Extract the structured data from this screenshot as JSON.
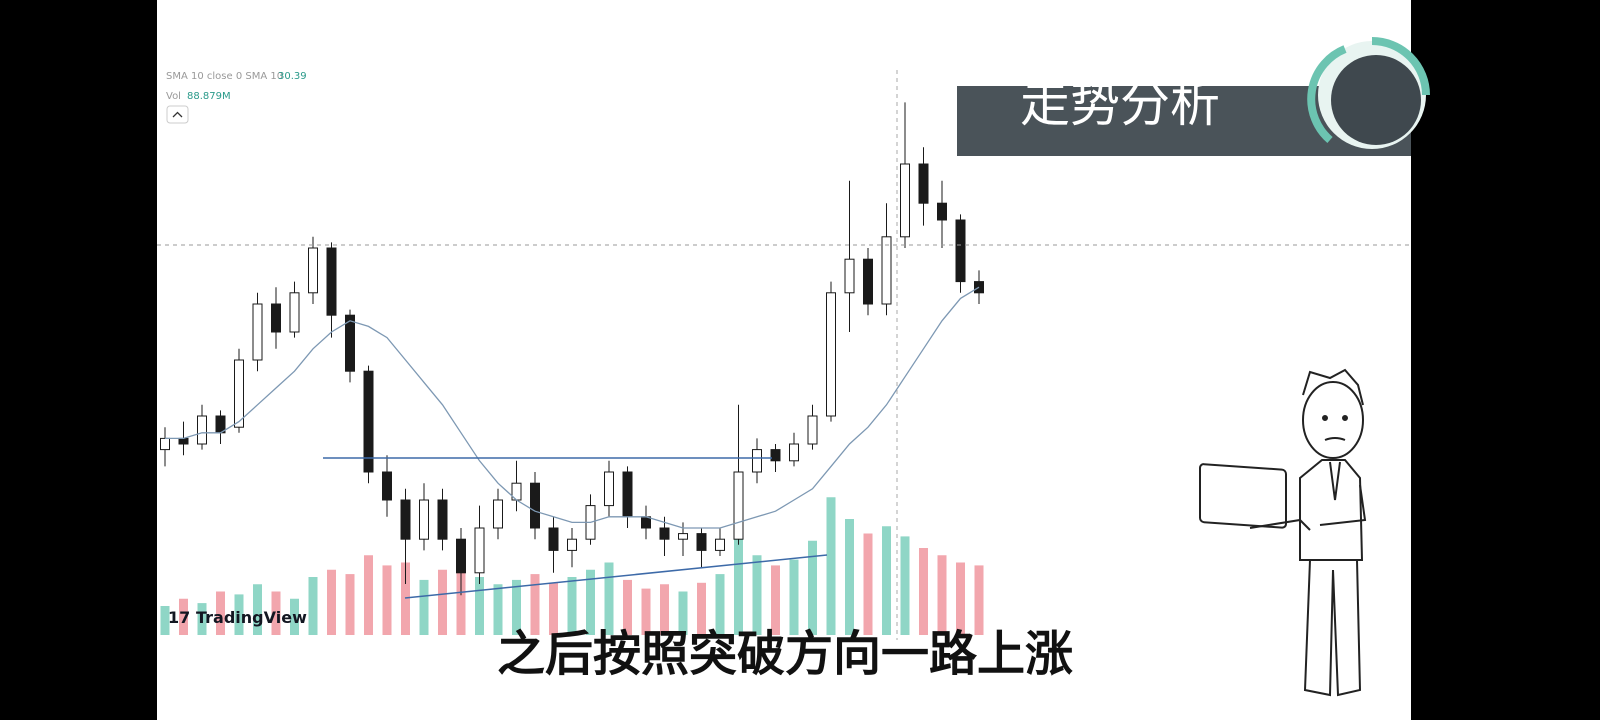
{
  "chart_data": {
    "type": "candlestick",
    "title": "走势分析",
    "subtitle": "之后按照突破方向一路上涨",
    "watermark": "TradingView",
    "sma_label": "SMA 10 close 0 SMA 10",
    "sma_value": "30.39",
    "vol_label": "Vol",
    "vol_value": "88.879M",
    "ylim": [
      0,
      100
    ],
    "vol_ylim": [
      0,
      100
    ],
    "up_color": "#1a1a1a",
    "down_color": "#1a1a1a",
    "vol_up_color": "#8fd6c6",
    "vol_down_color": "#f2a6ad",
    "sma_color": "#7d98b3",
    "candles": [
      [
        34,
        38,
        31,
        36
      ],
      [
        36,
        39,
        33,
        35
      ],
      [
        35,
        42,
        34,
        40
      ],
      [
        40,
        41,
        35,
        37
      ],
      [
        38,
        52,
        37,
        50
      ],
      [
        50,
        62,
        48,
        60
      ],
      [
        60,
        63,
        52,
        55
      ],
      [
        55,
        64,
        54,
        62
      ],
      [
        62,
        72,
        60,
        70
      ],
      [
        70,
        71,
        54,
        58
      ],
      [
        58,
        59,
        46,
        48
      ],
      [
        48,
        49,
        28,
        30
      ],
      [
        30,
        33,
        22,
        25
      ],
      [
        25,
        27,
        10,
        18
      ],
      [
        18,
        28,
        16,
        25
      ],
      [
        25,
        27,
        16,
        18
      ],
      [
        18,
        20,
        8,
        12
      ],
      [
        12,
        24,
        10,
        20
      ],
      [
        20,
        27,
        18,
        25
      ],
      [
        25,
        32,
        23,
        28
      ],
      [
        28,
        30,
        18,
        20
      ],
      [
        20,
        22,
        12,
        16
      ],
      [
        16,
        20,
        13,
        18
      ],
      [
        18,
        26,
        17,
        24
      ],
      [
        24,
        32,
        22,
        30
      ],
      [
        30,
        31,
        20,
        22
      ],
      [
        22,
        24,
        18,
        20
      ],
      [
        20,
        22,
        15,
        18
      ],
      [
        18,
        21,
        15,
        19
      ],
      [
        19,
        20,
        13,
        16
      ],
      [
        16,
        20,
        15,
        18
      ],
      [
        18,
        42,
        17,
        30
      ],
      [
        30,
        36,
        28,
        34
      ],
      [
        34,
        35,
        30,
        32
      ],
      [
        32,
        37,
        31,
        35
      ],
      [
        35,
        42,
        34,
        40
      ],
      [
        40,
        64,
        39,
        62
      ],
      [
        62,
        82,
        55,
        68
      ],
      [
        68,
        70,
        58,
        60
      ],
      [
        60,
        78,
        58,
        72
      ],
      [
        72,
        96,
        70,
        85
      ],
      [
        85,
        88,
        74,
        78
      ],
      [
        78,
        82,
        70,
        75
      ],
      [
        75,
        76,
        62,
        64
      ],
      [
        64,
        66,
        60,
        62
      ]
    ],
    "volume": [
      20,
      25,
      22,
      30,
      28,
      35,
      30,
      25,
      40,
      45,
      42,
      55,
      48,
      50,
      38,
      45,
      52,
      40,
      35,
      38,
      42,
      36,
      40,
      45,
      50,
      38,
      32,
      35,
      30,
      36,
      42,
      70,
      55,
      48,
      52,
      65,
      95,
      80,
      70,
      75,
      68,
      60,
      55,
      50,
      48
    ],
    "sma": [
      36,
      36,
      37,
      37,
      39,
      42,
      45,
      48,
      52,
      55,
      57,
      56,
      54,
      50,
      46,
      42,
      37,
      32,
      28,
      25,
      23,
      22,
      21,
      21,
      22,
      22,
      22,
      21,
      20,
      20,
      20,
      21,
      22,
      23,
      25,
      27,
      31,
      35,
      38,
      42,
      47,
      52,
      57,
      61,
      63
    ]
  }
}
